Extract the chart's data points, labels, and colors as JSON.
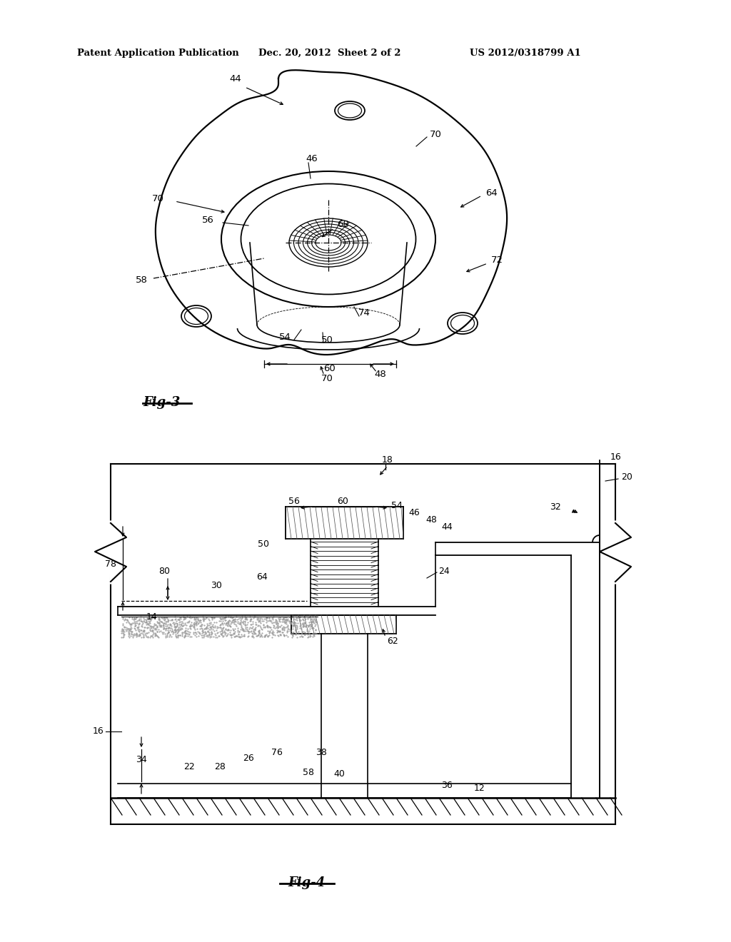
{
  "bg_color": "#ffffff",
  "header_left": "Patent Application Publication",
  "header_center": "Dec. 20, 2012  Sheet 2 of 2",
  "header_right": "US 2012/0318799 A1",
  "fig3_label": "Fig-3",
  "fig4_label": "Fig-4",
  "lc": "#000000"
}
